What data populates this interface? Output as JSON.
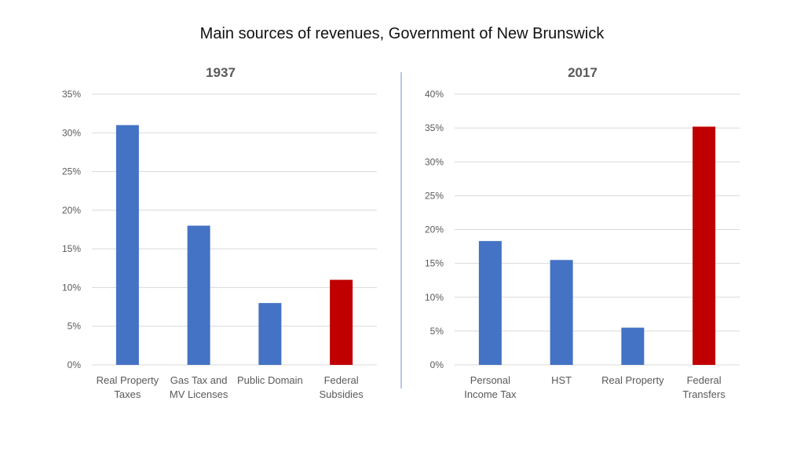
{
  "title": "Main sources of revenues, Government of New Brunswick",
  "colors": {
    "blue": "#4472c4",
    "red": "#c00000",
    "grid": "#d9d9d9",
    "divider": "#b4c7e7"
  },
  "chart_data": [
    {
      "type": "bar",
      "title": "1937",
      "categories": [
        [
          "Real Property",
          "Taxes"
        ],
        [
          "Gas Tax and",
          "MV Licenses"
        ],
        [
          "Public Domain"
        ],
        [
          "Federal",
          "Subsidies"
        ]
      ],
      "values": [
        31,
        18,
        8,
        11
      ],
      "highlight": [
        false,
        false,
        false,
        true
      ],
      "yticks": [
        "0%",
        "5%",
        "10%",
        "15%",
        "20%",
        "25%",
        "30%",
        "35%"
      ],
      "ylim": [
        0,
        35
      ],
      "xlabel": "",
      "ylabel": "",
      "grid": true
    },
    {
      "type": "bar",
      "title": "2017",
      "categories": [
        [
          "Personal",
          "Income Tax"
        ],
        [
          "HST"
        ],
        [
          "Real Property"
        ],
        [
          "Federal",
          "Transfers"
        ]
      ],
      "values": [
        18.3,
        15.5,
        5.5,
        35.2
      ],
      "highlight": [
        false,
        false,
        false,
        true
      ],
      "yticks": [
        "0%",
        "5%",
        "10%",
        "15%",
        "20%",
        "25%",
        "30%",
        "35%",
        "40%"
      ],
      "ylim": [
        0,
        40
      ],
      "xlabel": "",
      "ylabel": "",
      "grid": true
    }
  ]
}
